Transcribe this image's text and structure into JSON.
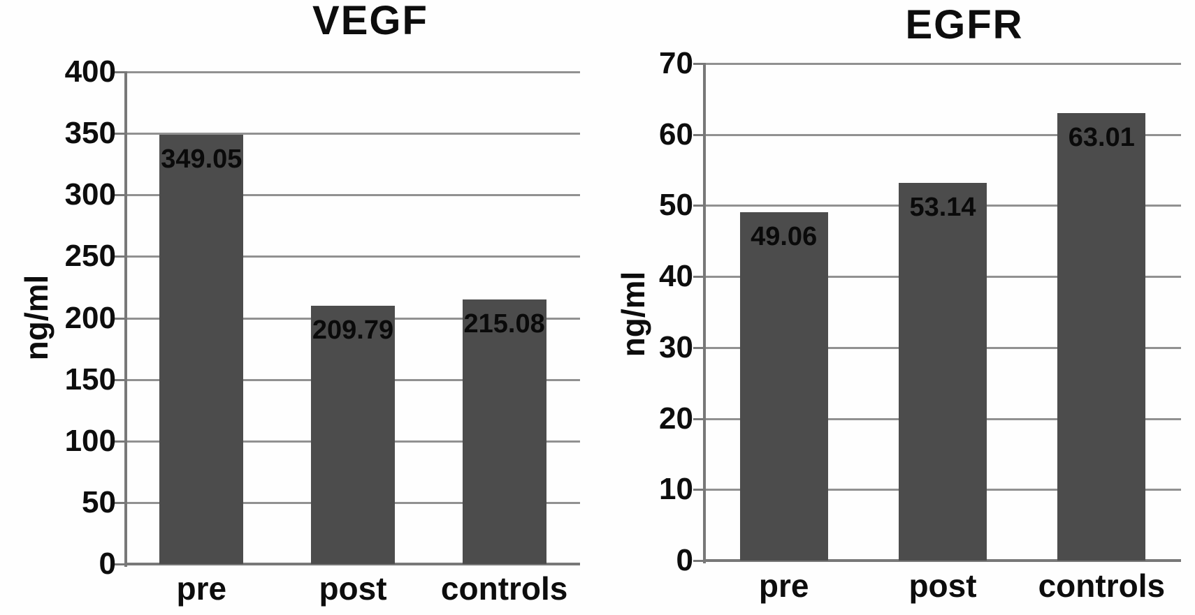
{
  "chart_data": [
    {
      "type": "bar",
      "title": "VEGF",
      "ylabel": "ng/ml",
      "xlabel": "",
      "categories": [
        "pre",
        "post",
        "controls"
      ],
      "values": [
        349.05,
        209.79,
        215.08
      ],
      "bar_labels": [
        "349.05",
        "209.79",
        "215.08"
      ],
      "ylim": [
        0,
        400
      ],
      "yticks": [
        0,
        50,
        100,
        150,
        200,
        250,
        300,
        350,
        400
      ],
      "grid": true,
      "legend": "none",
      "colors": {
        "bar": "#4c4c4c",
        "gridline": "#919191",
        "axis": "#787878",
        "text": "#0d0d0d",
        "background": "#fefefe"
      }
    },
    {
      "type": "bar",
      "title": "EGFR",
      "ylabel": "ng/ml",
      "xlabel": "",
      "categories": [
        "pre",
        "post",
        "controls"
      ],
      "values": [
        49.06,
        53.14,
        63.01
      ],
      "bar_labels": [
        "49.06",
        "53.14",
        "63.01"
      ],
      "ylim": [
        0,
        70
      ],
      "yticks": [
        0,
        10,
        20,
        30,
        40,
        50,
        60,
        70
      ],
      "grid": true,
      "legend": "none",
      "colors": {
        "bar": "#4c4c4c",
        "gridline": "#919191",
        "axis": "#787878",
        "text": "#0d0d0d",
        "background": "#fefefe"
      }
    }
  ]
}
